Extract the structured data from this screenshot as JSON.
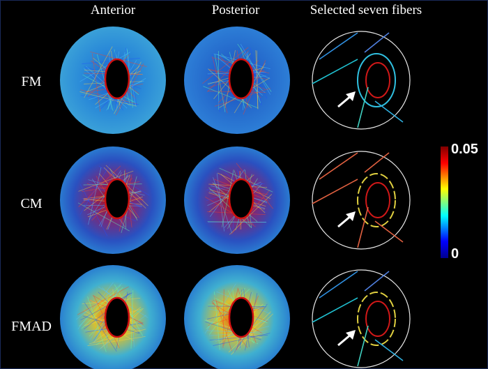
{
  "columns": [
    "Anterior",
    "Posterior",
    "Selected seven fibers"
  ],
  "rows": [
    "FM",
    "CM",
    "FMAD"
  ],
  "colorbar": {
    "max": 0.05,
    "min": 0
  }
}
